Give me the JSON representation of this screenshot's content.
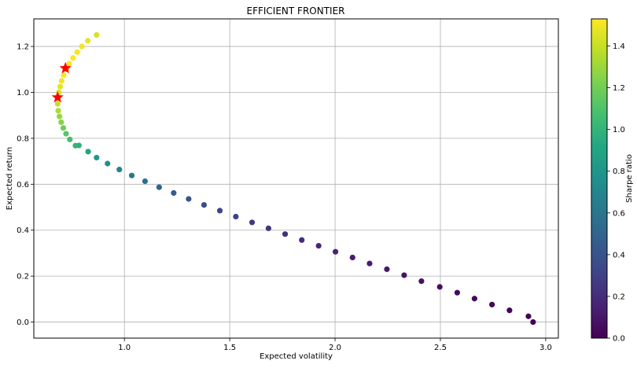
{
  "chart_data": {
    "type": "scatter",
    "title": "EFFICIENT FRONTIER",
    "xlabel": "Expected volatility",
    "ylabel": "Expected return",
    "xlim": [
      0.57,
      3.06
    ],
    "ylim": [
      -0.07,
      1.32
    ],
    "xticks": [
      "1.0",
      "1.5",
      "2.0",
      "2.5",
      "3.0"
    ],
    "yticks": [
      "0.0",
      "0.2",
      "0.4",
      "0.6",
      "0.8",
      "1.0",
      "1.2"
    ],
    "grid": true,
    "colorbar": {
      "label": "Sharpe ratio",
      "range": [
        0.0,
        1.53
      ],
      "ticks": [
        "0.0",
        "0.2",
        "0.4",
        "0.6",
        "0.8",
        "1.0",
        "1.2",
        "1.4"
      ],
      "colormap": "viridis"
    },
    "series": [
      {
        "x": [
          0.868,
          0.826,
          0.798,
          0.776,
          0.756,
          0.738,
          0.724,
          0.712,
          0.702,
          0.695,
          0.689,
          0.685,
          0.683,
          0.686,
          0.692,
          0.7,
          0.71,
          0.723,
          0.741,
          0.768,
          0.784,
          0.828,
          0.868,
          0.92,
          0.976,
          1.035,
          1.098,
          1.165,
          1.234,
          1.305,
          1.378,
          1.453,
          1.529,
          1.606,
          1.684,
          1.763,
          1.842,
          1.922,
          2.002,
          2.083,
          2.164,
          2.246,
          2.328,
          2.41,
          2.497,
          2.58,
          2.662,
          2.745,
          2.828,
          2.918,
          2.94
        ],
        "y": [
          1.25,
          1.225,
          1.2,
          1.175,
          1.15,
          1.125,
          1.1,
          1.075,
          1.05,
          1.025,
          1.0,
          0.975,
          0.95,
          0.92,
          0.895,
          0.87,
          0.845,
          0.82,
          0.795,
          0.768,
          0.769,
          0.742,
          0.716,
          0.69,
          0.664,
          0.638,
          0.613,
          0.587,
          0.562,
          0.536,
          0.51,
          0.485,
          0.459,
          0.434,
          0.408,
          0.383,
          0.357,
          0.332,
          0.306,
          0.281,
          0.255,
          0.23,
          0.204,
          0.178,
          0.153,
          0.128,
          0.102,
          0.076,
          0.051,
          0.025,
          0.0
        ],
        "sharpe": [
          1.44,
          1.48,
          1.5,
          1.51,
          1.52,
          1.52,
          1.52,
          1.51,
          1.5,
          1.47,
          1.45,
          1.42,
          1.39,
          1.34,
          1.29,
          1.25,
          1.19,
          1.13,
          1.07,
          1.0,
          0.98,
          0.9,
          0.82,
          0.75,
          0.68,
          0.62,
          0.56,
          0.5,
          0.46,
          0.41,
          0.37,
          0.33,
          0.3,
          0.27,
          0.24,
          0.22,
          0.19,
          0.17,
          0.15,
          0.13,
          0.12,
          0.1,
          0.09,
          0.07,
          0.06,
          0.05,
          0.04,
          0.03,
          0.02,
          0.01,
          0.0
        ]
      }
    ],
    "highlights": [
      {
        "x": 0.72,
        "y": 1.105,
        "marker": "star",
        "color": "#ff0000"
      },
      {
        "x": 0.683,
        "y": 0.978,
        "marker": "star",
        "color": "#ff0000"
      }
    ]
  }
}
